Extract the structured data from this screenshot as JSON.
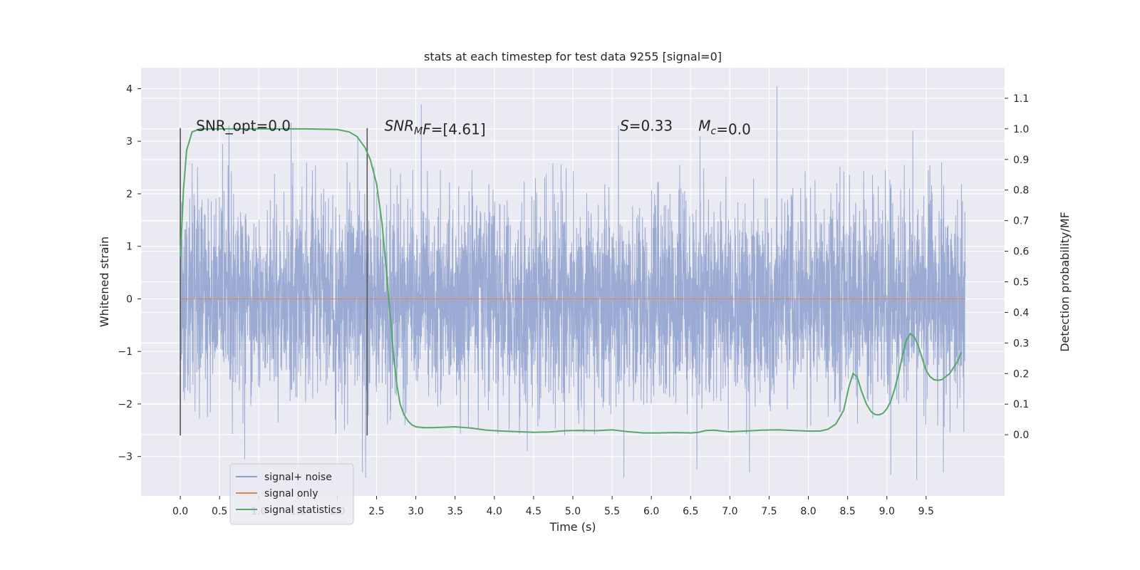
{
  "chart_data": {
    "type": "line",
    "title": "stats at each timestep for test data 9255 [signal=0]",
    "xlabel": "Time (s)",
    "ylabel": "Whitened strain",
    "ylabel_right": "Detection probability/MF",
    "xlim": [
      -0.5,
      10.5
    ],
    "ylim": [
      -3.75,
      4.4
    ],
    "ylim_right": [
      -0.2,
      1.2
    ],
    "x_ticks": [
      0.0,
      0.5,
      1.0,
      1.5,
      2.0,
      2.5,
      3.0,
      3.5,
      4.0,
      4.5,
      5.0,
      5.5,
      6.0,
      6.5,
      7.0,
      7.5,
      8.0,
      8.5,
      9.0,
      9.5
    ],
    "x_tick_labels": [
      "0.0",
      "0.5",
      "1.0",
      "1.5",
      "2.0",
      "2.5",
      "3.0",
      "3.5",
      "4.0",
      "4.5",
      "5.0",
      "5.5",
      "6.0",
      "6.5",
      "7.0",
      "7.5",
      "8.0",
      "8.5",
      "9.0",
      "9.5"
    ],
    "y_ticks": [
      -3,
      -2,
      -1,
      0,
      1,
      2,
      3,
      4
    ],
    "y_tick_labels": [
      "−3",
      "−2",
      "−1",
      "0",
      "1",
      "2",
      "3",
      "4"
    ],
    "y_right_ticks": [
      0.0,
      0.1,
      0.2,
      0.3,
      0.4,
      0.5,
      0.6,
      0.7,
      0.8,
      0.9,
      1.0,
      1.1
    ],
    "y_right_tick_labels": [
      "0.0",
      "0.1",
      "0.2",
      "0.3",
      "0.4",
      "0.5",
      "0.6",
      "0.7",
      "0.8",
      "0.9",
      "1.0",
      "1.1"
    ],
    "grid": true,
    "legend_position": "lower-left",
    "series": [
      {
        "name": "signal+ noise",
        "axis": "left",
        "color": "#8c9fcc",
        "x_range": [
          0.0,
          10.0
        ],
        "sample_rate": 2048,
        "note_values": "dense noise trace, approx range -3.4 to 4.05",
        "peaks": [
          [
            0.54,
            2.95
          ],
          [
            0.62,
            3.3
          ],
          [
            1.41,
            3.35
          ],
          [
            2.26,
            3.1
          ],
          [
            3.07,
            3.7
          ],
          [
            5.58,
            3.3
          ],
          [
            6.62,
            3.1
          ],
          [
            7.6,
            4.05
          ],
          [
            9.33,
            3.2
          ],
          [
            0.82,
            -3.05
          ],
          [
            2.32,
            -3.3
          ],
          [
            2.36,
            -3.4
          ],
          [
            4.42,
            -2.9
          ],
          [
            5.65,
            -3.4
          ],
          [
            6.58,
            -3.25
          ],
          [
            7.25,
            -3.3
          ],
          [
            9.05,
            -3.35
          ],
          [
            9.38,
            -3.45
          ],
          [
            9.72,
            -3.3
          ]
        ]
      },
      {
        "name": "signal only",
        "axis": "left",
        "color": "#dd8452",
        "x": [
          0.0,
          10.0
        ],
        "y": [
          0.0,
          0.0
        ]
      },
      {
        "name": "signal statistics",
        "axis": "right",
        "color": "#55a868",
        "x": [
          0.0,
          0.04,
          0.08,
          0.15,
          0.25,
          0.4,
          0.8,
          1.2,
          1.6,
          2.0,
          2.15,
          2.25,
          2.35,
          2.42,
          2.5,
          2.57,
          2.63,
          2.68,
          2.72,
          2.76,
          2.8,
          2.85,
          2.9,
          2.95,
          3.0,
          3.1,
          3.2,
          3.3,
          3.5,
          3.7,
          3.9,
          4.1,
          4.3,
          4.5,
          4.7,
          4.9,
          5.1,
          5.3,
          5.5,
          5.7,
          5.9,
          6.1,
          6.3,
          6.5,
          6.6,
          6.7,
          6.8,
          6.9,
          7.0,
          7.2,
          7.4,
          7.6,
          7.8,
          8.0,
          8.15,
          8.25,
          8.35,
          8.45,
          8.52,
          8.57,
          8.62,
          8.68,
          8.74,
          8.8,
          8.85,
          8.9,
          8.95,
          9.0,
          9.05,
          9.1,
          9.15,
          9.2,
          9.25,
          9.3,
          9.35,
          9.4,
          9.45,
          9.5,
          9.55,
          9.6,
          9.65,
          9.7,
          9.75,
          9.8,
          9.85,
          9.9,
          9.95
        ],
        "y": [
          0.58,
          0.8,
          0.93,
          0.99,
          1.0,
          1.0,
          1.0,
          1.0,
          1.0,
          0.998,
          0.99,
          0.975,
          0.94,
          0.9,
          0.82,
          0.69,
          0.52,
          0.37,
          0.25,
          0.16,
          0.1,
          0.065,
          0.045,
          0.032,
          0.026,
          0.023,
          0.023,
          0.024,
          0.026,
          0.022,
          0.015,
          0.012,
          0.01,
          0.008,
          0.009,
          0.013,
          0.014,
          0.013,
          0.016,
          0.01,
          0.006,
          0.006,
          0.007,
          0.006,
          0.008,
          0.014,
          0.015,
          0.012,
          0.01,
          0.012,
          0.015,
          0.016,
          0.014,
          0.012,
          0.012,
          0.018,
          0.035,
          0.08,
          0.16,
          0.2,
          0.19,
          0.14,
          0.1,
          0.075,
          0.066,
          0.065,
          0.07,
          0.085,
          0.11,
          0.15,
          0.2,
          0.26,
          0.31,
          0.33,
          0.32,
          0.29,
          0.25,
          0.21,
          0.19,
          0.18,
          0.178,
          0.18,
          0.19,
          0.2,
          0.22,
          0.24,
          0.27
        ]
      }
    ],
    "vertical_lines": [
      {
        "x": 0.0,
        "y_from": -2.6,
        "y_to": 3.25,
        "color": "#555555"
      },
      {
        "x": 2.38,
        "y_from": -2.6,
        "y_to": 3.25,
        "color": "#555555"
      }
    ],
    "annotations": [
      {
        "text_plain": "SNR_opt=0.0",
        "x": 0.2,
        "y": 3.2
      },
      {
        "text_italic": "SNR",
        "subscript": "M",
        "suffix_italic": "F",
        "suffix": "=[4.61]",
        "x": 2.6,
        "y": 3.2
      },
      {
        "text_italic": "S",
        "suffix": "=0.33",
        "x": 5.6,
        "y": 3.2
      },
      {
        "text_italic": "M",
        "subscript": "c",
        "suffix": "=0.0",
        "x": 6.6,
        "y": 3.2
      }
    ]
  }
}
